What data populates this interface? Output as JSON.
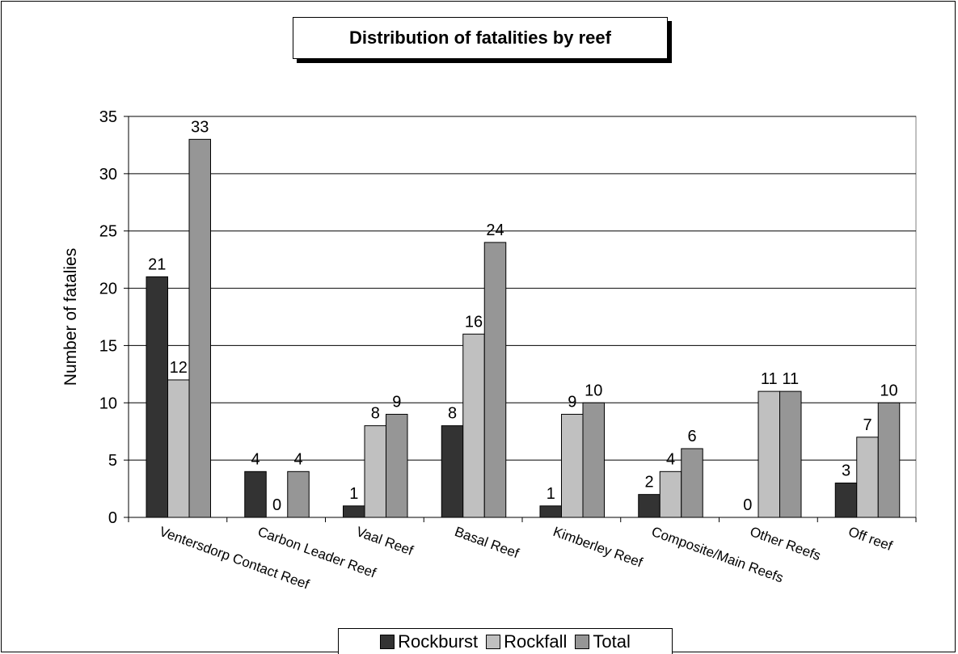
{
  "chart_data": {
    "type": "bar",
    "title": "Distribution of fatalities by reef",
    "xlabel": "",
    "ylabel": "Number of fatalies",
    "ylim": [
      0,
      35
    ],
    "yticks": [
      0,
      5,
      10,
      15,
      20,
      25,
      30,
      35
    ],
    "grid": true,
    "legend_position": "bottom",
    "categories": [
      "Ventersdorp Contact Reef",
      "Carbon Leader Reef",
      "Vaal Reef",
      "Basal Reef",
      "Kimberley Reef",
      "Composite/Main Reefs",
      "Other Reefs",
      "Off reef"
    ],
    "series": [
      {
        "name": "Rockburst",
        "color": "#333333",
        "values": [
          21,
          4,
          1,
          8,
          1,
          2,
          0,
          3
        ],
        "labels": [
          "21",
          "4",
          "1",
          "8",
          "1",
          "2",
          "0",
          "3"
        ]
      },
      {
        "name": "Rockfall",
        "color": "#c0c0c0",
        "values": [
          12,
          0,
          8,
          16,
          9,
          4,
          11,
          7
        ],
        "labels": [
          "12",
          "0",
          "8",
          "16",
          "9",
          "4",
          "11",
          "7"
        ]
      },
      {
        "name": "Total",
        "color": "#969696",
        "values": [
          33,
          4,
          9,
          24,
          10,
          6,
          11,
          10
        ],
        "labels": [
          "33",
          "4",
          "9",
          "24",
          "10",
          "6",
          "11",
          "10"
        ]
      }
    ]
  }
}
